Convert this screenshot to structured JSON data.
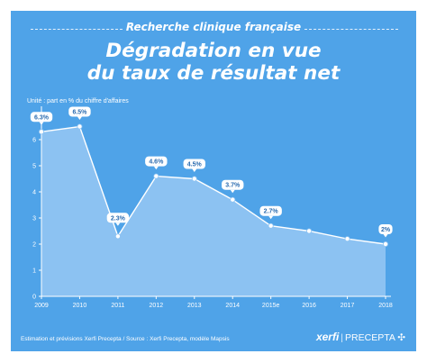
{
  "header": {
    "kicker": "Recherche clinique française",
    "title_line1": "Dégradation en vue",
    "title_line2": "du taux de résultat net"
  },
  "chart_data": {
    "type": "area",
    "title": "Dégradation en vue du taux de résultat net",
    "subtitle": "Unité : part en % du chiffre d'affaires",
    "categories": [
      "2009",
      "2010",
      "2011",
      "2012",
      "2013",
      "2014",
      "2015e",
      "2016",
      "2017",
      "2018"
    ],
    "values": [
      6.3,
      6.5,
      2.3,
      4.6,
      4.5,
      3.7,
      2.7,
      2.5,
      2.2,
      2.0
    ],
    "data_labels": [
      "6.3%",
      "6.5%",
      "2.3%",
      "4.6%",
      "4.5%",
      "3.7%",
      "2.7%",
      null,
      null,
      "2%"
    ],
    "yticks": [
      0,
      1,
      2,
      3,
      4,
      5,
      6
    ],
    "ylim": [
      0,
      7
    ],
    "grid": false,
    "colors": {
      "background": "#4fa3e8",
      "area": "#8cc2f2",
      "line": "#ffffff",
      "label_text": "#2b6cb0"
    }
  },
  "footer": {
    "source": "Estimation et prévisions Xerfi Precepta / Source : Xerfi Precepta, modèle Mapsis",
    "brand_main": "xerfi",
    "brand_sub": "PRECEPTA"
  }
}
